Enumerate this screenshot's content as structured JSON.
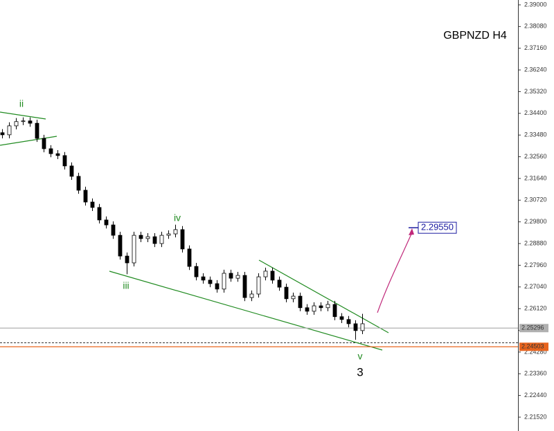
{
  "chart_data": {
    "type": "candlestick",
    "title": "GBPNZD H4",
    "ylim": [
      2.20933,
      2.39205
    ],
    "yticks": [
      {
        "value": 2.39,
        "label": "2.39000"
      },
      {
        "value": 2.3808,
        "label": "2.38080"
      },
      {
        "value": 2.3716,
        "label": "2.37160"
      },
      {
        "value": 2.3624,
        "label": "2.36240"
      },
      {
        "value": 2.3532,
        "label": "2.35320"
      },
      {
        "value": 2.344,
        "label": "2.34400"
      },
      {
        "value": 2.3348,
        "label": "2.33480"
      },
      {
        "value": 2.3256,
        "label": "2.32560"
      },
      {
        "value": 2.3164,
        "label": "2.31640"
      },
      {
        "value": 2.3072,
        "label": "2.30720"
      },
      {
        "value": 2.298,
        "label": "2.29800"
      },
      {
        "value": 2.2888,
        "label": "2.28880"
      },
      {
        "value": 2.2796,
        "label": "2.27960"
      },
      {
        "value": 2.2704,
        "label": "2.27040"
      },
      {
        "value": 2.2612,
        "label": "2.26120"
      },
      {
        "value": 2.252,
        "label": "2.25200"
      },
      {
        "value": 2.2428,
        "label": "2.24280"
      },
      {
        "value": 2.2336,
        "label": "2.23360"
      },
      {
        "value": 2.2244,
        "label": "2.22440"
      },
      {
        "value": 2.2152,
        "label": "2.21520"
      }
    ],
    "up_color": "#ffffff",
    "down_color": "#000000",
    "candles": [
      [
        2.3358,
        2.3373,
        2.3334,
        2.3349
      ],
      [
        2.3349,
        2.3402,
        2.3334,
        2.3387
      ],
      [
        2.3387,
        2.342,
        2.3372,
        2.3405
      ],
      [
        2.3405,
        2.3423,
        2.339,
        2.3408
      ],
      [
        2.3408,
        2.3423,
        2.3383,
        2.3398
      ],
      [
        2.3398,
        2.3413,
        2.3319,
        2.3334
      ],
      [
        2.3334,
        2.3349,
        2.3275,
        2.329
      ],
      [
        2.329,
        2.3305,
        2.3254,
        2.3269
      ],
      [
        2.3269,
        2.3284,
        2.3246,
        2.3261
      ],
      [
        2.3261,
        2.3276,
        2.3202,
        2.3217
      ],
      [
        2.3217,
        2.3232,
        2.3158,
        2.3173
      ],
      [
        2.3173,
        2.3188,
        2.3099,
        2.3114
      ],
      [
        2.3114,
        2.3129,
        2.3049,
        2.3064
      ],
      [
        2.3064,
        2.3079,
        2.3026,
        2.3041
      ],
      [
        2.3041,
        2.3056,
        2.2973,
        2.2988
      ],
      [
        2.2988,
        2.3003,
        2.2952,
        2.2967
      ],
      [
        2.2967,
        2.2982,
        2.2908,
        2.2923
      ],
      [
        2.2923,
        2.2938,
        2.282,
        2.2835
      ],
      [
        2.2835,
        2.285,
        2.2758,
        2.2806
      ],
      [
        2.2806,
        2.2938,
        2.2791,
        2.2923
      ],
      [
        2.2923,
        2.2938,
        2.2894,
        2.2909
      ],
      [
        2.2909,
        2.2932,
        2.2894,
        2.2917
      ],
      [
        2.2917,
        2.2932,
        2.2873,
        2.2888
      ],
      [
        2.2888,
        2.2938,
        2.2873,
        2.2923
      ],
      [
        2.2923,
        2.2944,
        2.2908,
        2.2929
      ],
      [
        2.2929,
        2.2968,
        2.2914,
        2.2947
      ],
      [
        2.2947,
        2.2962,
        2.285,
        2.2865
      ],
      [
        2.2865,
        2.288,
        2.2776,
        2.2791
      ],
      [
        2.2791,
        2.2806,
        2.2732,
        2.2747
      ],
      [
        2.2747,
        2.2762,
        2.2718,
        2.2733
      ],
      [
        2.2733,
        2.2748,
        2.2703,
        2.2718
      ],
      [
        2.2718,
        2.2733,
        2.268,
        2.2695
      ],
      [
        2.2695,
        2.2777,
        2.268,
        2.2762
      ],
      [
        2.2762,
        2.2777,
        2.2726,
        2.2741
      ],
      [
        2.2741,
        2.2768,
        2.2726,
        2.2753
      ],
      [
        2.2753,
        2.2768,
        2.2644,
        2.2659
      ],
      [
        2.2659,
        2.2689,
        2.2644,
        2.2674
      ],
      [
        2.2674,
        2.2762,
        2.2659,
        2.2747
      ],
      [
        2.2747,
        2.2786,
        2.2732,
        2.2771
      ],
      [
        2.2771,
        2.2786,
        2.2718,
        2.2733
      ],
      [
        2.2733,
        2.2748,
        2.2688,
        2.2703
      ],
      [
        2.2703,
        2.2718,
        2.2639,
        2.2654
      ],
      [
        2.2654,
        2.268,
        2.2639,
        2.2665
      ],
      [
        2.2665,
        2.268,
        2.2601,
        2.2616
      ],
      [
        2.2616,
        2.2631,
        2.2586,
        2.2601
      ],
      [
        2.2601,
        2.2639,
        2.2586,
        2.2624
      ],
      [
        2.2624,
        2.2639,
        2.2601,
        2.2616
      ],
      [
        2.2616,
        2.2645,
        2.2601,
        2.263
      ],
      [
        2.263,
        2.2645,
        2.2563,
        2.2578
      ],
      [
        2.2578,
        2.2593,
        2.2551,
        2.2566
      ],
      [
        2.2566,
        2.2581,
        2.2533,
        2.2548
      ],
      [
        2.2548,
        2.2563,
        2.248,
        2.2519
      ],
      [
        2.2519,
        2.259,
        2.2504,
        2.2548
      ]
    ],
    "price_lines": [
      {
        "value": 2.25296,
        "label": "2.25296",
        "color": "#b0b0b0"
      },
      {
        "value": 2.24503,
        "label": "2.24503",
        "color": "#e8641e"
      }
    ],
    "target": {
      "value": 2.2955,
      "label": "2.29550",
      "color": "#1a1aa0"
    },
    "wave_labels": [
      "ii",
      "iii",
      "iv",
      "v"
    ],
    "degree_label": "3"
  }
}
